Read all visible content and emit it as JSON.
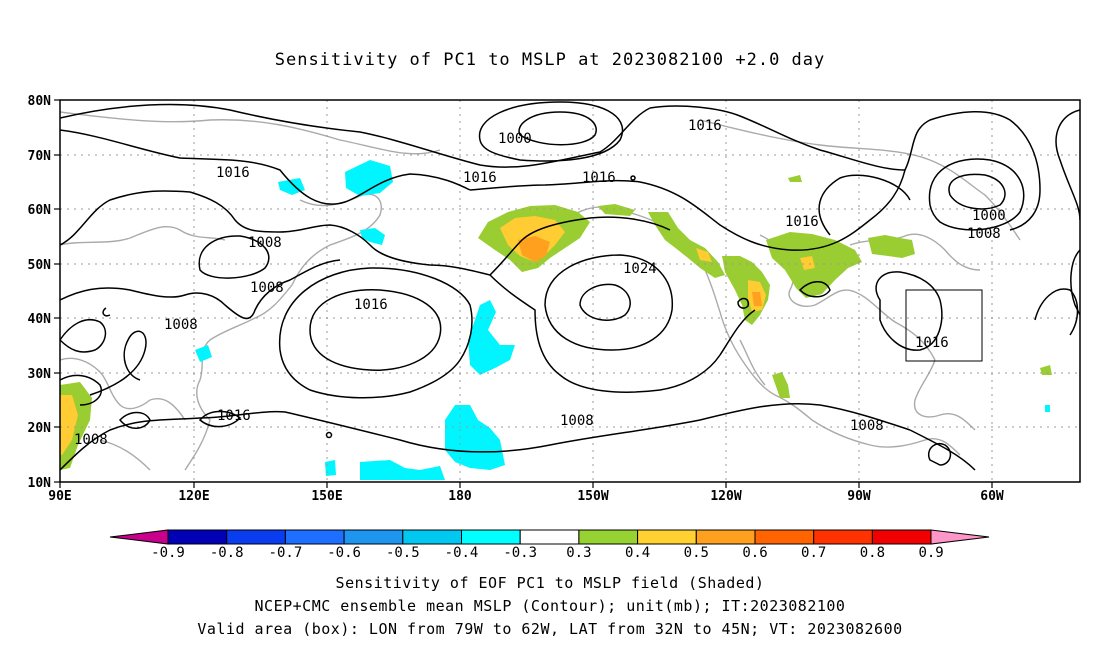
{
  "title": "Sensitivity of PC1 to MSLP at 2023082100 +2.0 day",
  "map": {
    "lat_labels": [
      "80N",
      "70N",
      "60N",
      "50N",
      "40N",
      "30N",
      "20N",
      "10N"
    ],
    "lon_labels": [
      "90E",
      "120E",
      "150E",
      "180",
      "150W",
      "120W",
      "90W",
      "60W"
    ],
    "contour_labels": [
      "1000",
      "1016",
      "1016",
      "1016",
      "1016",
      "1008",
      "1008",
      "1008",
      "1016",
      "1024",
      "1016",
      "1008",
      "1008",
      "1008",
      "1016",
      "1000",
      "1008",
      "1016"
    ],
    "box": {
      "lon_range": "79W to 62W",
      "lat_range": "32N to 45N"
    }
  },
  "colorbar": {
    "labels": [
      "-0.9",
      "-0.8",
      "-0.7",
      "-0.6",
      "-0.5",
      "-0.4",
      "-0.3",
      "0.3",
      "0.4",
      "0.5",
      "0.6",
      "0.7",
      "0.8",
      "0.9"
    ],
    "colors": [
      "#0000b4",
      "#0a3cf0",
      "#1e6eff",
      "#1e96f0",
      "#00c8f0",
      "#00ffff",
      "#ffffff",
      "#96d232",
      "#ffd232",
      "#ffa01e",
      "#ff6400",
      "#ff3200",
      "#f00000"
    ],
    "low_end_color": "#c8008c",
    "high_end_color": "#ff96c8"
  },
  "captions": {
    "line1": "Sensitivity of EOF PC1 to MSLP field (Shaded)",
    "line2": "NCEP+CMC ensemble mean MSLP (Contour); unit(mb); IT:2023082100",
    "line3": "Valid area (box): LON from 79W to 62W, LAT from 32N to 45N; VT: 2023082600"
  }
}
